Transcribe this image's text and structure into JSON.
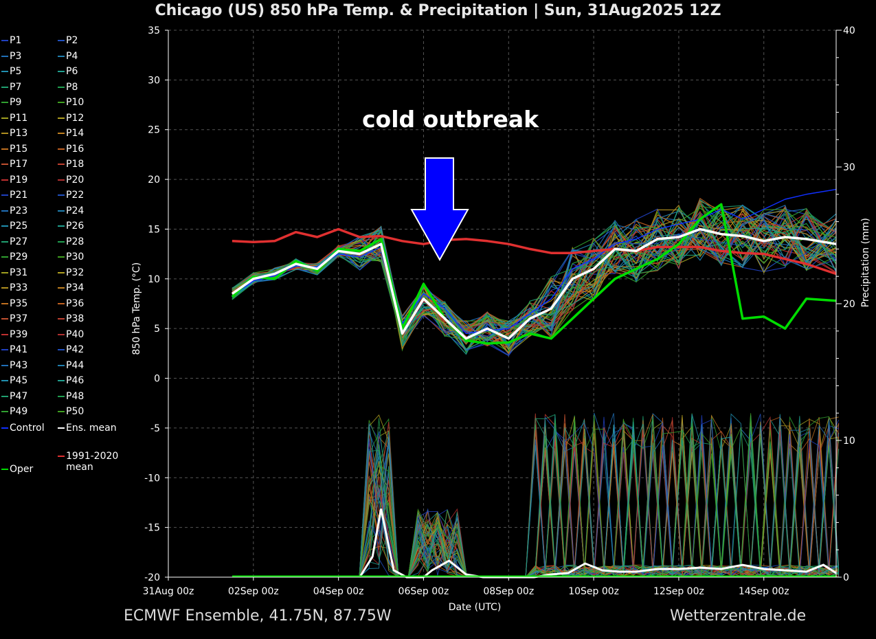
{
  "chart_data": {
    "type": "line",
    "title": "Chicago  (US)  850 hPa Temp. & Precipitation | Sun, 31Aug2025 12Z",
    "xlabel": "Date (UTC)",
    "ylabel": "850 hPa Temp. (°C)",
    "y2label": "Precipitation (mm)",
    "xlim": [
      0,
      15.7
    ],
    "ylim": [
      -20,
      35
    ],
    "y2lim": [
      0,
      40
    ],
    "x_ticks": [
      0,
      2,
      4,
      6,
      8,
      10,
      12,
      14
    ],
    "x_tick_labels": [
      "31Aug 00z",
      "02Sep 00z",
      "04Sep 00z",
      "06Sep 00z",
      "08Sep 00z",
      "10Sep 00z",
      "12Sep 00z",
      "14Sep 00z"
    ],
    "y_ticks": [
      -20,
      -15,
      -10,
      -5,
      0,
      5,
      10,
      15,
      20,
      25,
      30,
      35
    ],
    "y2_ticks": [
      0,
      10,
      20,
      30,
      40
    ],
    "grid": true,
    "annotation": "cold outbreak",
    "annotation_arrow_color": "#0000ff",
    "series": [
      {
        "name": "Ens. mean",
        "color": "#ffffff",
        "x": [
          1.5,
          2,
          2.5,
          3,
          3.5,
          4,
          4.5,
          5,
          5.5,
          6,
          6.5,
          7,
          7.5,
          8,
          8.5,
          9,
          9.5,
          10,
          10.5,
          11,
          11.5,
          12,
          12.5,
          13,
          13.5,
          14,
          14.5,
          15,
          15.7
        ],
        "y": [
          8.5,
          10,
          10.5,
          11.5,
          11,
          12.8,
          12.5,
          13.5,
          4.5,
          8,
          6,
          4,
          5,
          4,
          6,
          7,
          10,
          11,
          13,
          12.8,
          14,
          14.2,
          15,
          14.5,
          14.3,
          13.8,
          14.2,
          14,
          13.5
        ]
      },
      {
        "name": "Oper",
        "color": "#00dd00",
        "x": [
          1.5,
          2,
          2.5,
          3,
          3.5,
          4,
          4.5,
          5,
          5.5,
          6,
          6.5,
          7,
          7.5,
          8,
          8.5,
          9,
          9.5,
          10,
          10.5,
          11,
          11.5,
          12,
          12.5,
          13,
          13.5,
          14,
          14.5,
          15,
          15.7
        ],
        "y": [
          8.2,
          10.2,
          10,
          11.8,
          10.8,
          13,
          12.8,
          14,
          5,
          9.5,
          6,
          3.8,
          3.5,
          3.6,
          4.5,
          4,
          6,
          8,
          10,
          11,
          12,
          13.5,
          16,
          17.5,
          6,
          6.2,
          5,
          8,
          7.8
        ]
      },
      {
        "name": "1991-2020 mean",
        "color": "#e03030",
        "x": [
          1.5,
          2,
          2.5,
          3,
          3.5,
          4,
          4.5,
          5,
          5.5,
          6,
          6.5,
          7,
          7.5,
          8,
          8.5,
          9,
          9.5,
          10,
          10.5,
          11,
          11.5,
          12,
          12.5,
          13,
          13.5,
          14,
          14.5,
          15,
          15.7
        ],
        "y": [
          13.8,
          13.7,
          13.8,
          14.7,
          14.2,
          15,
          14.2,
          14.3,
          13.8,
          13.5,
          13.9,
          14,
          13.8,
          13.5,
          13,
          12.6,
          12.6,
          12.8,
          13,
          12.8,
          13.2,
          13.2,
          13.2,
          12.8,
          12.6,
          12.5,
          12,
          11.5,
          10.5
        ]
      },
      {
        "name": "Control",
        "color": "#1030ff",
        "x": [
          1.5,
          2,
          2.5,
          3,
          3.5,
          4,
          4.5,
          5,
          5.5,
          6,
          6.5,
          7,
          7.5,
          8,
          8.5,
          9,
          9.5,
          10,
          10.5,
          11,
          11.5,
          12,
          12.5,
          13,
          13.5,
          14,
          14.5,
          15,
          15.7
        ],
        "y": [
          8.3,
          9.8,
          10.3,
          11.3,
          11.2,
          12.5,
          12.2,
          13.2,
          5.5,
          8.5,
          7,
          4.5,
          4.8,
          5,
          6.5,
          8,
          11,
          12,
          13.5,
          14,
          15,
          15.5,
          16,
          17,
          16,
          17,
          18,
          18.5,
          19
        ]
      }
    ],
    "precip_series": [
      {
        "name": "Ens. mean",
        "color": "#ffffff",
        "x": [
          4.5,
          4.8,
          5,
          5.3,
          5.6,
          6,
          6.2,
          6.6,
          7,
          7.4,
          7.8,
          8.2,
          8.6,
          9,
          9.4,
          9.8,
          10.2,
          10.6,
          11,
          11.5,
          12,
          12.5,
          13,
          13.5,
          14,
          14.5,
          15,
          15.4,
          15.7
        ],
        "y": [
          0,
          1.5,
          5,
          0.5,
          0,
          0,
          0.5,
          1.2,
          0.2,
          0,
          0,
          0,
          0,
          0.2,
          0.3,
          1,
          0.5,
          0.4,
          0.4,
          0.6,
          0.6,
          0.7,
          0.6,
          0.9,
          0.6,
          0.5,
          0.4,
          0.9,
          0.3
        ]
      }
    ]
  },
  "legend": {
    "members": [
      "P1",
      "P2",
      "P3",
      "P4",
      "P5",
      "P6",
      "P7",
      "P8",
      "P9",
      "P10",
      "P11",
      "P12",
      "P13",
      "P14",
      "P15",
      "P16",
      "P17",
      "P18",
      "P19",
      "P20",
      "P21",
      "P22",
      "P23",
      "P24",
      "P25",
      "P26",
      "P27",
      "P28",
      "P29",
      "P30",
      "P31",
      "P32",
      "P33",
      "P34",
      "P35",
      "P36",
      "P37",
      "P38",
      "P39",
      "P40",
      "P41",
      "P42",
      "P43",
      "P44",
      "P45",
      "P46",
      "P47",
      "P48",
      "P49",
      "P50"
    ],
    "member_colors": [
      "#2040c0",
      "#2050c0",
      "#2070b8",
      "#2080b0",
      "#2090b0",
      "#20a090",
      "#20a070",
      "#20a050",
      "#30a030",
      "#40a020",
      "#a0a020",
      "#b0a020",
      "#b09020",
      "#c08020",
      "#c07020",
      "#c06020",
      "#c05030",
      "#c04030",
      "#c03030",
      "#b03030",
      "#2040c0",
      "#2050c0",
      "#2070b8",
      "#2080b0",
      "#2090b0",
      "#20a090",
      "#20a070",
      "#20a050",
      "#30a030",
      "#40a020",
      "#a0a020",
      "#b0a020",
      "#b09020",
      "#c08020",
      "#c07020",
      "#c06020",
      "#c05030",
      "#c04030",
      "#c03030",
      "#b03030",
      "#2040c0",
      "#2050c0",
      "#2070b8",
      "#2080b0",
      "#2090b0",
      "#20a090",
      "#20a070",
      "#20a050",
      "#30a030",
      "#40a020"
    ],
    "control_label": "Control",
    "ens_mean_label": "Ens. mean",
    "clim_label_1": "1991-2020",
    "clim_label_2": "mean",
    "oper_label": "Oper"
  },
  "footer": {
    "left": "ECMWF Ensemble, 41.75N, 87.75W",
    "right": "Wetterzentrale.de"
  }
}
